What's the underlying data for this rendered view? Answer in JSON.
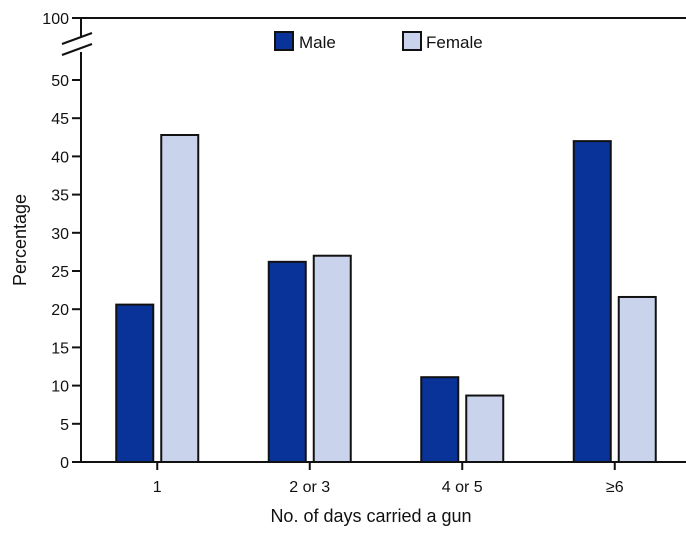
{
  "chart_data": {
    "type": "bar",
    "categories": [
      "1",
      "2 or 3",
      "4 or 5",
      "≥6"
    ],
    "series": [
      {
        "name": "Male",
        "values": [
          20.6,
          26.2,
          11.1,
          42.0
        ],
        "color": "#0a3399"
      },
      {
        "name": "Female",
        "values": [
          42.8,
          27.0,
          8.7,
          21.6
        ],
        "color": "#c9d4ec"
      }
    ],
    "xlabel": "No. of days carried a gun",
    "ylabel": "Percentage",
    "ylim": [
      0,
      100
    ],
    "yticks": [
      "0",
      "5",
      "10",
      "15",
      "20",
      "25",
      "30",
      "35",
      "40",
      "45",
      "50",
      "100"
    ],
    "axis_break": true,
    "grid": false,
    "legend_position": "top-center"
  }
}
